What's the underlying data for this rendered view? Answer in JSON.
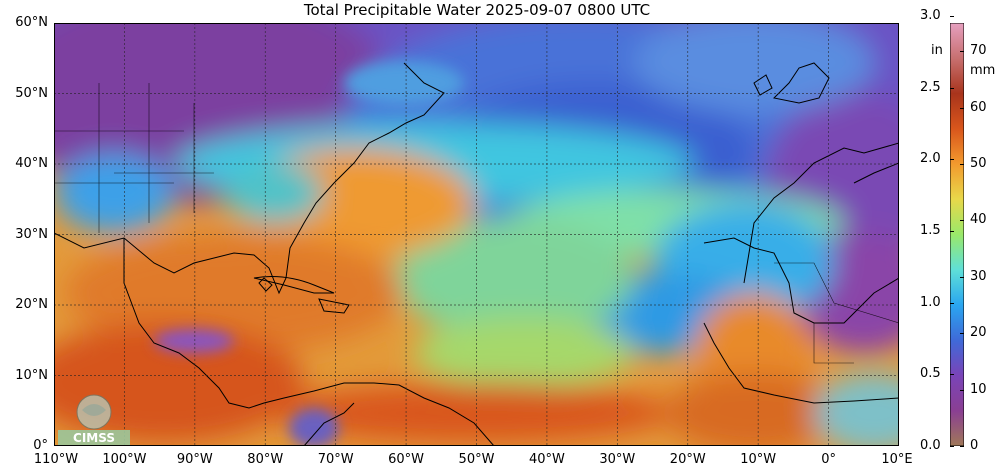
{
  "map": {
    "title": "Total Precipitable Water  2025-09-07 0800 UTC",
    "lat_labels": [
      "60°N",
      "50°N",
      "40°N",
      "30°N",
      "20°N",
      "10°N",
      "0°"
    ],
    "lon_labels": [
      "110°W",
      "100°W",
      "90°W",
      "80°W",
      "70°W",
      "60°W",
      "50°W",
      "40°W",
      "30°W",
      "20°W",
      "10°W",
      "0°",
      "10°E"
    ],
    "lon_range": [
      -110,
      10
    ],
    "lat_range": [
      0,
      60
    ],
    "grid": true,
    "logo_text": "CIMSS"
  },
  "colorbar": {
    "left_unit": "in",
    "right_unit": "mm",
    "left_ticks": [
      "3.0",
      "2.5",
      "2.0",
      "1.5",
      "1.0",
      "0.5",
      "0.0"
    ],
    "left_values": [
      3.0,
      2.5,
      2.0,
      1.5,
      1.0,
      0.5,
      0.0
    ],
    "right_ticks": [
      "70",
      "60",
      "50",
      "40",
      "30",
      "20",
      "10",
      "0"
    ],
    "right_values": [
      70,
      60,
      50,
      40,
      30,
      20,
      10,
      0
    ],
    "range_mm": [
      0,
      75
    ],
    "colors": [
      "#a07858",
      "#8a3f93",
      "#7a44b8",
      "#3f6ad8",
      "#2aa6f0",
      "#5fe0d8",
      "#9ae86a",
      "#e8d84a",
      "#f29a2e",
      "#d9561c",
      "#a8341c",
      "#c87070",
      "#e6a0c0"
    ]
  }
}
